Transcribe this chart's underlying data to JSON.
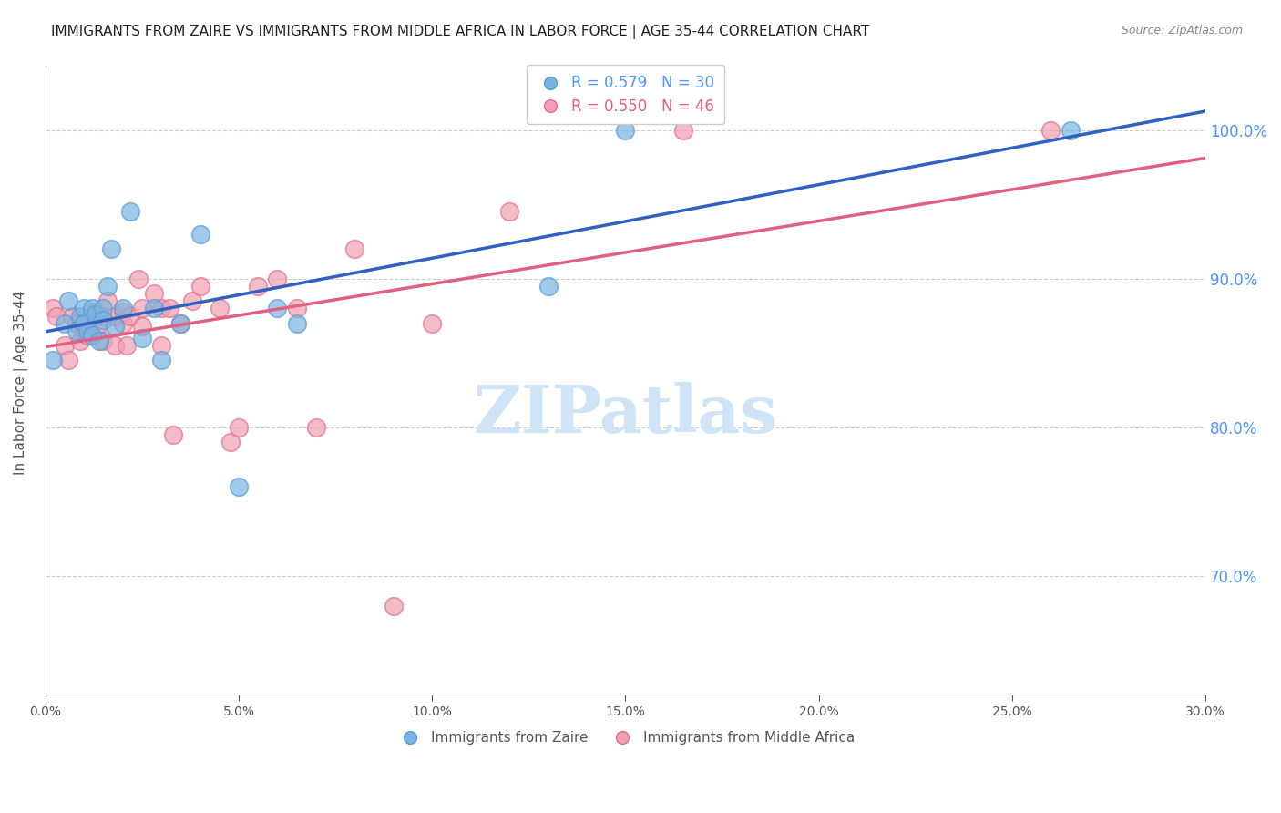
{
  "title": "IMMIGRANTS FROM ZAIRE VS IMMIGRANTS FROM MIDDLE AFRICA IN LABOR FORCE | AGE 35-44 CORRELATION CHART",
  "source": "Source: ZipAtlas.com",
  "xlabel": "",
  "ylabel": "In Labor Force | Age 35-44",
  "xlim": [
    0.0,
    0.3
  ],
  "ylim": [
    0.62,
    1.04
  ],
  "xticks": [
    0.0,
    0.05,
    0.1,
    0.15,
    0.2,
    0.25,
    0.3
  ],
  "yticks": [
    0.7,
    0.8,
    0.9,
    1.0
  ],
  "ytick_labels": [
    "70.0%",
    "80.0%",
    "90.0%",
    "100.0%"
  ],
  "xtick_labels": [
    "0.0%",
    "5.0%",
    "10.0%",
    "15.0%",
    "20.0%",
    "25.0%",
    "30.0%"
  ],
  "grid_color": "#cccccc",
  "title_color": "#222222",
  "title_fontsize": 11,
  "axis_label_color": "#555555",
  "tick_label_color_y": "#4d94ff",
  "tick_label_color_x": "#555555",
  "legend_label_color": "#4d94ff",
  "watermark_text": "ZIPatlas",
  "watermark_color": "#d0e4f7",
  "zaire_color": "#7ab3e0",
  "zaire_edge": "#5a9dd5",
  "middle_africa_color": "#f0a0b0",
  "middle_africa_edge": "#e07090",
  "line_zaire_color": "#3060c0",
  "line_middle_africa_color": "#e06080",
  "R_zaire": 0.579,
  "N_zaire": 30,
  "R_middle_africa": 0.55,
  "N_middle_africa": 46,
  "zaire_x": [
    0.002,
    0.005,
    0.006,
    0.008,
    0.009,
    0.01,
    0.01,
    0.011,
    0.012,
    0.012,
    0.013,
    0.014,
    0.015,
    0.015,
    0.016,
    0.017,
    0.018,
    0.02,
    0.022,
    0.025,
    0.028,
    0.03,
    0.035,
    0.04,
    0.05,
    0.06,
    0.065,
    0.13,
    0.15,
    0.265
  ],
  "zaire_y": [
    0.845,
    0.87,
    0.885,
    0.865,
    0.875,
    0.88,
    0.87,
    0.865,
    0.88,
    0.862,
    0.876,
    0.858,
    0.88,
    0.872,
    0.895,
    0.92,
    0.868,
    0.88,
    0.945,
    0.86,
    0.88,
    0.845,
    0.87,
    0.93,
    0.76,
    0.88,
    0.87,
    0.895,
    1.0,
    1.0
  ],
  "middle_africa_x": [
    0.002,
    0.003,
    0.005,
    0.006,
    0.007,
    0.008,
    0.009,
    0.01,
    0.01,
    0.011,
    0.012,
    0.013,
    0.014,
    0.015,
    0.015,
    0.016,
    0.018,
    0.018,
    0.02,
    0.02,
    0.021,
    0.022,
    0.024,
    0.025,
    0.025,
    0.028,
    0.03,
    0.03,
    0.032,
    0.033,
    0.035,
    0.038,
    0.04,
    0.045,
    0.048,
    0.05,
    0.055,
    0.06,
    0.065,
    0.07,
    0.08,
    0.09,
    0.1,
    0.12,
    0.165,
    0.26
  ],
  "middle_africa_y": [
    0.88,
    0.875,
    0.855,
    0.845,
    0.875,
    0.87,
    0.858,
    0.865,
    0.87,
    0.862,
    0.875,
    0.878,
    0.87,
    0.858,
    0.875,
    0.885,
    0.875,
    0.855,
    0.878,
    0.87,
    0.855,
    0.875,
    0.9,
    0.88,
    0.868,
    0.89,
    0.88,
    0.855,
    0.88,
    0.795,
    0.87,
    0.885,
    0.895,
    0.88,
    0.79,
    0.8,
    0.895,
    0.9,
    0.88,
    0.8,
    0.92,
    0.68,
    0.87,
    0.945,
    1.0,
    1.0
  ]
}
